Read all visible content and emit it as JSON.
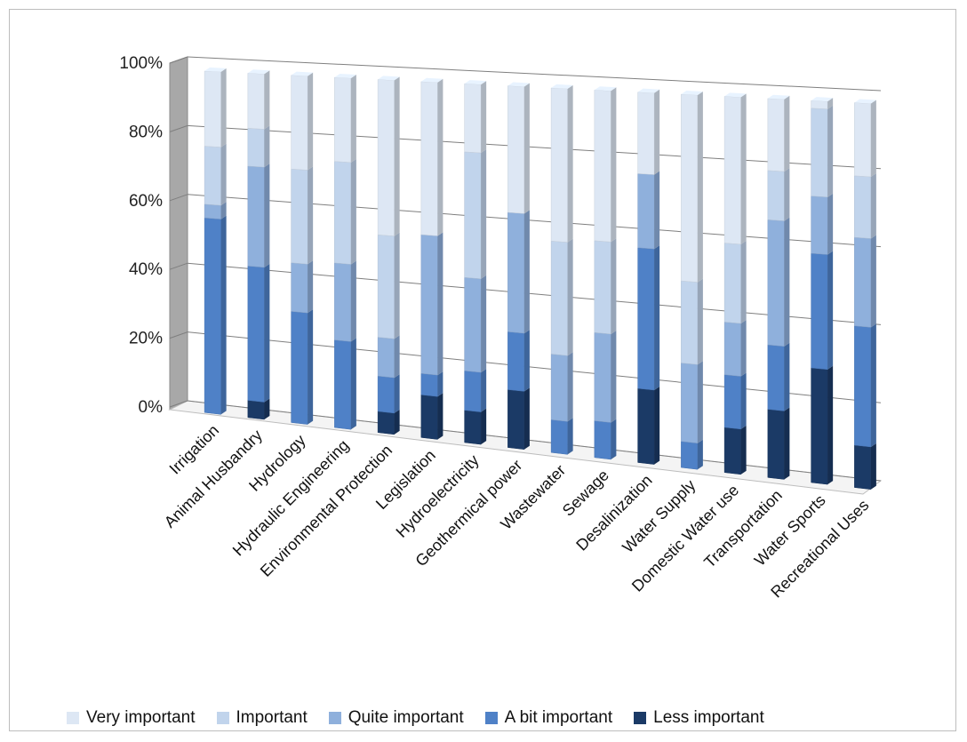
{
  "chart_data": {
    "type": "bar",
    "stacked": "percent",
    "projection": "3d",
    "title": "",
    "xlabel": "",
    "ylabel": "",
    "ylim": [
      0,
      100
    ],
    "y_ticks": [
      "0%",
      "20%",
      "40%",
      "60%",
      "80%",
      "100%"
    ],
    "grid": true,
    "legend_position": "bottom",
    "categories": [
      "Irrigation",
      "Animal Husbandry",
      "Hydrology",
      "Hydraulic Engineering",
      "Environmental Protection",
      "Legislation",
      "Hydroelectricity",
      "Geothermical power",
      "Wastewater",
      "Sewage",
      "Desalinization",
      "Water Supply",
      "Domestic Water use",
      "Transportation",
      "Water Sports",
      "Recreational Uses"
    ],
    "series": [
      {
        "name": "Less important",
        "color": "#1b3a66",
        "values": [
          0,
          5,
          0,
          0,
          6,
          12,
          9,
          16,
          0,
          0,
          20,
          0,
          12,
          18,
          30,
          11
        ]
      },
      {
        "name": "A bit important",
        "color": "#4f81c7",
        "values": [
          57,
          39,
          32,
          25,
          10,
          6,
          11,
          16,
          9,
          10,
          38,
          7,
          14,
          17,
          30,
          31
        ]
      },
      {
        "name": "Quite important",
        "color": "#8fb0dc",
        "values": [
          4,
          29,
          14,
          22,
          11,
          39,
          26,
          33,
          18,
          24,
          20,
          21,
          14,
          33,
          15,
          23
        ]
      },
      {
        "name": "Important",
        "color": "#c1d4ec",
        "values": [
          17,
          11,
          27,
          29,
          29,
          0,
          35,
          0,
          31,
          25,
          0,
          22,
          21,
          13,
          23,
          16
        ]
      },
      {
        "name": "Very important",
        "color": "#dde7f4",
        "values": [
          22,
          16,
          27,
          24,
          44,
          43,
          19,
          35,
          42,
          41,
          22,
          50,
          39,
          19,
          2,
          19
        ]
      }
    ]
  }
}
